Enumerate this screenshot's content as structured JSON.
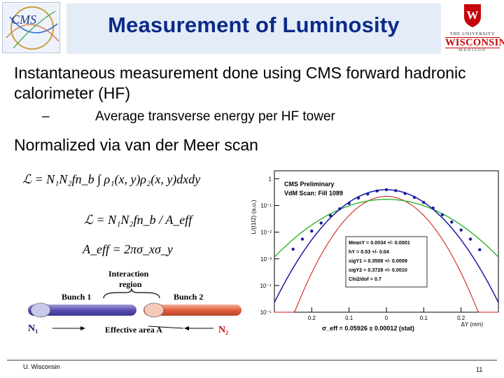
{
  "slide": {
    "title": "Measurement of Luminosity",
    "bullet1": "Instantaneous measurement done using CMS forward hadronic calorimeter (HF)",
    "sub_dash": "–",
    "sub_bullet": "Average transverse energy per HF tower",
    "bullet2": "Normalized via van der Meer scan",
    "footer_left": "U. Wisconsin",
    "page_number": "11"
  },
  "logos": {
    "cms_text": "CMS",
    "uw_the": "THE UNIVERSITY",
    "uw_name": "WISCONSIN",
    "uw_madison": "MADISON"
  },
  "formulas": {
    "lum_lhs": "ℒ = N",
    "lum_full": "ℒ = N₁N₂fn_b ∫ ρ₁(x, y)ρ₂(x, y)dxdy",
    "lum_eff": "ℒ = N₁N₂fn_b / A_eff",
    "aeff": "A_eff = 2πσ_xσ_y"
  },
  "collision": {
    "interaction_label": "Interaction",
    "region_label": "region",
    "bunch1": "Bunch 1",
    "bunch2": "Bunch 2",
    "n1": "N₁",
    "n2": "N₂",
    "effective_area": "Effective area A"
  },
  "chart_data": {
    "type": "scatter",
    "title": "CMS Preliminary",
    "subtitle": "VdM Scan: Fill 1089",
    "xlabel": "ΔY (mm)",
    "ylabel": "L/(I1I2) (a.u.)",
    "xlim": [
      -0.3,
      0.3
    ],
    "ylim_log": [
      -5,
      0.3
    ],
    "xticks": [
      "0.2",
      "0.1",
      "0",
      "0.1",
      "0.2"
    ],
    "yticks": [
      "1",
      "10⁻¹",
      "10⁻²",
      "10⁻³",
      "10⁻⁴",
      "10⁻⁵"
    ],
    "series": [
      {
        "color": "#1a1aa0",
        "x": [
          -0.25,
          -0.225,
          -0.2,
          -0.175,
          -0.15,
          -0.125,
          -0.1,
          -0.075,
          -0.05,
          -0.025,
          0,
          0.025,
          0.05,
          0.075,
          0.1,
          0.125,
          0.15,
          0.175,
          0.2,
          0.225,
          0.25
        ],
        "y": [
          0.0023,
          0.0055,
          0.011,
          0.022,
          0.042,
          0.075,
          0.12,
          0.19,
          0.27,
          0.35,
          0.39,
          0.36,
          0.28,
          0.2,
          0.13,
          0.08,
          0.045,
          0.024,
          0.012,
          0.0055,
          0.0022
        ]
      }
    ],
    "stats": [
      "MeanY = 0.0034 +/- 0.0001",
      "hY = 0.53 +/- 0.04",
      "sigY1 = 0.3508 +/- 0.0009",
      "sigY2 = 0.3728 +/- 0.0010",
      "Chi2/dof = 0.7"
    ],
    "sigma_eff": "σ_eff = 0.05926 ± 0.00012 (stat)",
    "colors": {
      "fit_blue": "#1a1aa0",
      "fit_red": "#d01010",
      "fit_green": "#20b020"
    }
  }
}
